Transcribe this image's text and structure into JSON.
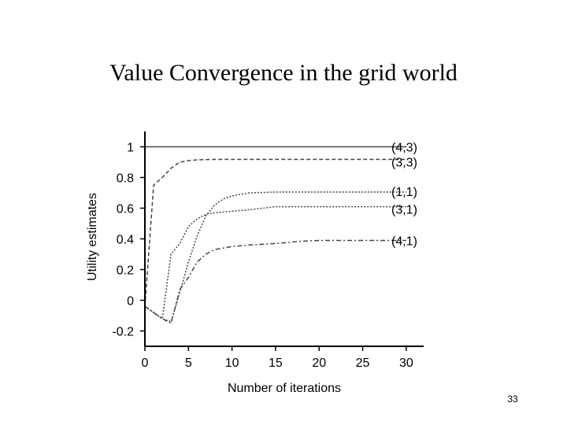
{
  "slide": {
    "title": "Value Convergence in the grid world",
    "page_number": "33"
  },
  "chart_data": {
    "type": "line",
    "title": "",
    "xlabel": "Number of iterations",
    "ylabel": "Utility estimates",
    "xlim": [
      0,
      32
    ],
    "ylim": [
      -0.3,
      1.1
    ],
    "x_ticks": [
      0,
      5,
      10,
      15,
      20,
      25,
      30
    ],
    "y_ticks": [
      -0.2,
      0,
      0.2,
      0.4,
      0.6,
      0.8,
      1
    ],
    "y_tick_labels": [
      "-0.2",
      "0",
      "0.2",
      "0.4",
      "0.6",
      "0.8",
      "1"
    ],
    "grid": false,
    "legend_placement": "right-end-of-lines",
    "line_color": "#444444",
    "series": [
      {
        "name": "(4,3)",
        "dash": "solid",
        "x": [
          0,
          1,
          30
        ],
        "y": [
          1.0,
          1.0,
          1.0
        ]
      },
      {
        "name": "(3,3)",
        "dash": "dashed",
        "x": [
          0,
          1,
          2,
          3,
          4,
          5,
          6,
          8,
          10,
          15,
          20,
          25,
          30
        ],
        "y": [
          -0.04,
          0.75,
          0.8,
          0.86,
          0.9,
          0.91,
          0.915,
          0.918,
          0.918,
          0.918,
          0.918,
          0.918,
          0.918
        ]
      },
      {
        "name": "(1,1)",
        "dash": "dotted",
        "x": [
          0,
          1,
          2,
          3,
          4,
          5,
          6,
          7,
          8,
          9,
          10,
          12,
          15,
          20,
          25,
          30
        ],
        "y": [
          -0.04,
          -0.08,
          -0.12,
          -0.14,
          0.05,
          0.25,
          0.42,
          0.55,
          0.62,
          0.66,
          0.68,
          0.7,
          0.705,
          0.705,
          0.705,
          0.705
        ]
      },
      {
        "name": "(3,1)",
        "dash": "dotted",
        "x": [
          0,
          1,
          2,
          3,
          4,
          5,
          6,
          7,
          8,
          10,
          12,
          15,
          20,
          25,
          30
        ],
        "y": [
          -0.04,
          -0.08,
          -0.12,
          0.3,
          0.37,
          0.48,
          0.53,
          0.56,
          0.57,
          0.58,
          0.59,
          0.61,
          0.61,
          0.61,
          0.61
        ]
      },
      {
        "name": "(4,1)",
        "dash": "dashdot",
        "x": [
          0,
          1,
          2,
          3,
          4,
          5,
          6,
          7,
          8,
          10,
          12,
          15,
          18,
          20,
          25,
          30
        ],
        "y": [
          -0.04,
          -0.08,
          -0.12,
          -0.15,
          0.07,
          0.15,
          0.25,
          0.3,
          0.33,
          0.35,
          0.36,
          0.37,
          0.385,
          0.39,
          0.39,
          0.39
        ]
      }
    ]
  }
}
